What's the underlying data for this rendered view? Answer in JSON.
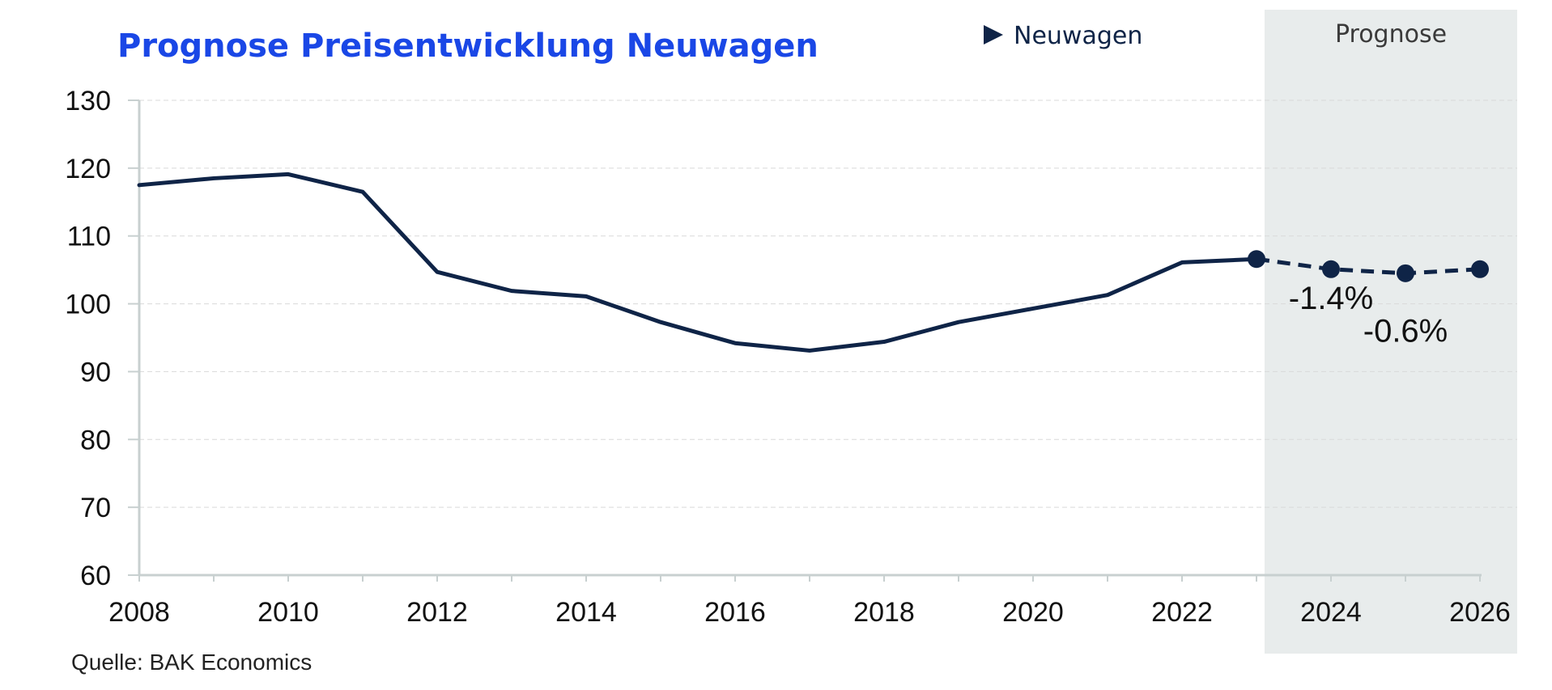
{
  "chart_data": {
    "type": "line",
    "title": "Prognose Preisentwicklung Neuwagen",
    "legend": {
      "label": "Neuwagen",
      "placement": "top-right"
    },
    "forecast_label": "Prognose",
    "source": "Quelle: BAK Economics",
    "xlabel": "",
    "ylabel": "",
    "x_ticks": [
      "2008",
      "2010",
      "2012",
      "2014",
      "2016",
      "2018",
      "2020",
      "2022",
      "2024",
      "2026"
    ],
    "y_ticks": [
      "60",
      "70",
      "80",
      "90",
      "100",
      "110",
      "120",
      "130"
    ],
    "xlim": [
      2008,
      2026
    ],
    "ylim": [
      60,
      130
    ],
    "grid": {
      "horizontal": true,
      "style": "dashed"
    },
    "forecast_start": 2023,
    "series": [
      {
        "name": "Neuwagen",
        "x": [
          2008,
          2009,
          2010,
          2011,
          2012,
          2013,
          2014,
          2015,
          2016,
          2017,
          2018,
          2019,
          2020,
          2021,
          2022,
          2023,
          2024,
          2025,
          2026
        ],
        "values": [
          117.5,
          118.5,
          119.1,
          116.5,
          104.7,
          101.9,
          101.1,
          97.3,
          94.2,
          93.1,
          94.4,
          97.3,
          99.3,
          101.3,
          106.1,
          106.6,
          105.1,
          104.5,
          105.1
        ],
        "forecast_from_index": 15
      }
    ],
    "annotations": [
      {
        "text": "-1.4%",
        "x": 2024,
        "y": 100.9
      },
      {
        "text": "-0.6%",
        "x": 2025,
        "y": 96.1
      }
    ],
    "colors": {
      "line": "#0f2447",
      "title": "#1a47e6",
      "forecast_band": "#e8ecec",
      "grid": "#d9d9d9",
      "axis": "#c8d0d0"
    }
  }
}
